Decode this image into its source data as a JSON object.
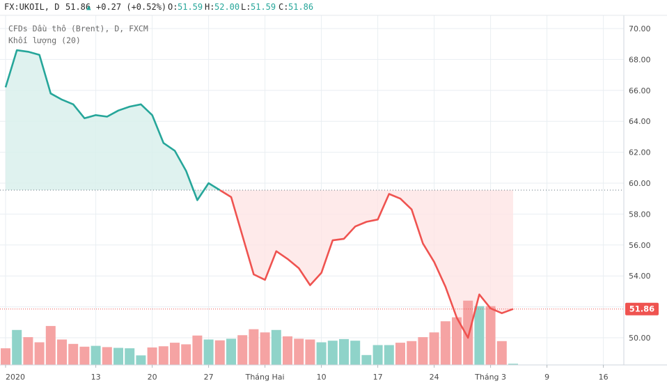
{
  "header": {
    "symbol": "FX:UKOIL, D",
    "last": "51.86",
    "change_arrow": "▲",
    "change": "+0.27 (+0.52%)",
    "o_label": "O:",
    "o_value": "51.59",
    "h_label": "H:",
    "h_value": "52.00",
    "l_label": "L:",
    "l_value": "51.59",
    "c_label": "C:",
    "c_value": "51.86"
  },
  "legend": {
    "series_label": "CFDs Dầu thô (Brent), D, FXCM",
    "volume_label": "Khối lượng (20)"
  },
  "colors": {
    "up": "#26a69a",
    "down": "#ef5350",
    "up_fill": "#d9f0ec",
    "down_fill": "#fde3e3",
    "vol_up": "#8fd3c9",
    "vol_down": "#f5a3a3",
    "grid": "#e9eef2",
    "axis_text": "#4a4a4a",
    "price_label_bg": "#ef5350"
  },
  "chart_data": {
    "type": "line",
    "title": "CFDs Dầu thô (Brent), D, FXCM",
    "ylim": [
      48.6,
      71.0
    ],
    "yticks": [
      "70.00",
      "68.00",
      "66.00",
      "64.00",
      "62.00",
      "60.00",
      "58.00",
      "56.00",
      "54.00",
      "52.00",
      "50.00"
    ],
    "yticks_values": [
      70,
      68,
      66,
      64,
      62,
      60,
      58,
      56,
      54,
      52,
      50
    ],
    "xticks": [
      "2020",
      "13",
      "20",
      "27",
      "Tháng Hai",
      "10",
      "17",
      "24",
      "Tháng 3",
      "9",
      "16"
    ],
    "xticks_day": [
      0,
      8,
      13,
      18,
      23,
      28,
      33,
      38,
      43,
      48,
      53
    ],
    "reference_level": 59.55,
    "current_price": 51.86,
    "current_price_label": "51.86",
    "series": [
      {
        "type": "line",
        "day": [
          0,
          1,
          2,
          3,
          4,
          5,
          6,
          7,
          8,
          9,
          10,
          11,
          12,
          13,
          14,
          15,
          16,
          17,
          18,
          19,
          20,
          21,
          22,
          23,
          24,
          25,
          26,
          27,
          28,
          29,
          30,
          31,
          32,
          33,
          34,
          35,
          36,
          37,
          38,
          39,
          40,
          41,
          42,
          43,
          44,
          45
        ],
        "close": [
          66.2,
          68.6,
          68.5,
          68.3,
          65.8,
          65.4,
          65.1,
          64.2,
          64.4,
          64.3,
          64.7,
          64.95,
          65.1,
          64.4,
          62.6,
          62.1,
          60.8,
          58.9,
          60.0,
          59.55,
          59.1,
          56.6,
          54.1,
          53.75,
          55.6,
          55.1,
          54.5,
          53.4,
          54.2,
          56.3,
          56.4,
          57.2,
          57.5,
          57.65,
          59.3,
          59.0,
          58.3,
          56.1,
          54.9,
          53.3,
          51.3,
          50.0,
          52.8,
          51.9,
          51.59,
          51.86
        ]
      },
      {
        "type": "volume",
        "title": "Khối lượng (20)",
        "day": [
          0,
          1,
          2,
          3,
          4,
          5,
          6,
          7,
          8,
          9,
          10,
          11,
          12,
          13,
          14,
          15,
          16,
          17,
          18,
          19,
          20,
          21,
          22,
          23,
          24,
          25,
          26,
          27,
          28,
          29,
          30,
          31,
          32,
          33,
          34,
          35,
          36,
          37,
          38,
          39,
          40,
          41,
          42,
          43,
          44,
          45
        ],
        "dir": [
          "down",
          "up",
          "down",
          "down",
          "down",
          "down",
          "down",
          "down",
          "up",
          "down",
          "up",
          "up",
          "up",
          "down",
          "down",
          "down",
          "down",
          "down",
          "up",
          "down",
          "up",
          "down",
          "down",
          "down",
          "up",
          "down",
          "down",
          "down",
          "up",
          "up",
          "up",
          "up",
          "up",
          "up",
          "up",
          "down",
          "down",
          "down",
          "down",
          "down",
          "down",
          "down",
          "up",
          "down",
          "down",
          "up"
        ],
        "value": [
          0.42,
          0.88,
          0.7,
          0.57,
          0.98,
          0.64,
          0.53,
          0.46,
          0.48,
          0.45,
          0.43,
          0.42,
          0.24,
          0.44,
          0.47,
          0.56,
          0.52,
          0.74,
          0.64,
          0.62,
          0.66,
          0.75,
          0.9,
          0.82,
          0.88,
          0.72,
          0.66,
          0.64,
          0.57,
          0.61,
          0.65,
          0.61,
          0.25,
          0.5,
          0.5,
          0.56,
          0.6,
          0.7,
          0.82,
          1.1,
          1.2,
          1.62,
          1.48,
          1.48,
          0.6,
          0.03
        ]
      }
    ]
  }
}
